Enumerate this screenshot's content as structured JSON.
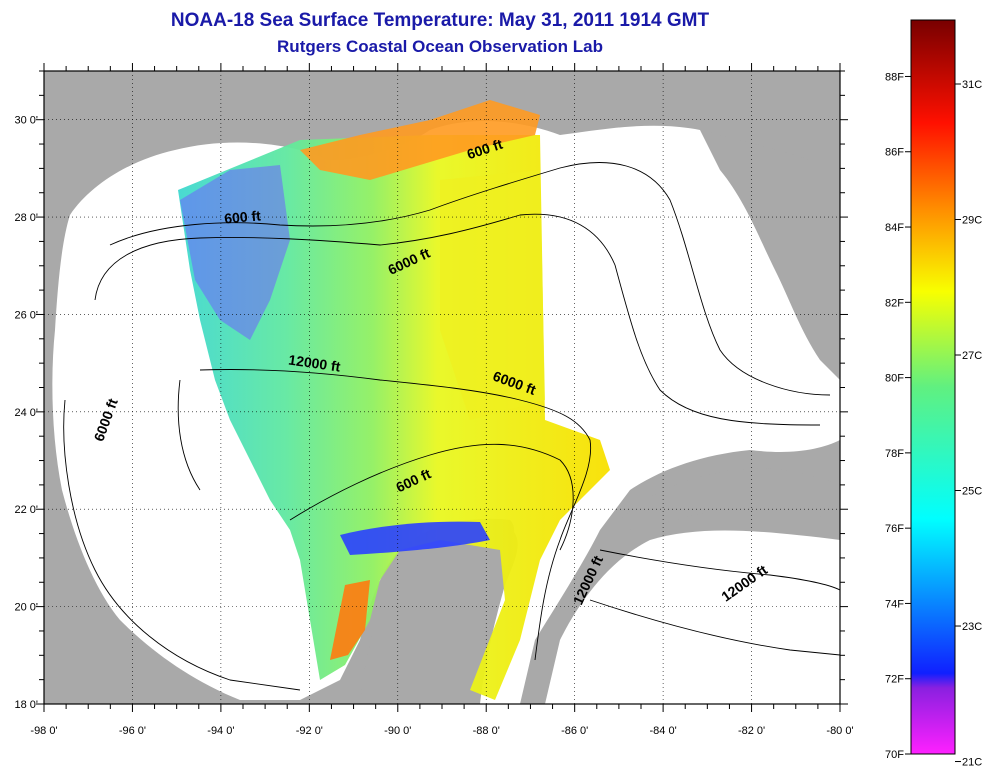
{
  "title": "NOAA-18 Sea Surface Temperature:  May 31, 2011 1914 GMT",
  "subtitle": "Rutgers Coastal Ocean Observation Lab",
  "axes": {
    "lon_range": [
      -98,
      -80
    ],
    "lat_range": [
      18,
      31
    ],
    "lon_ticks": [
      "-98 0'",
      "-96 0'",
      "-94 0'",
      "-92 0'",
      "-90 0'",
      "-88 0'",
      "-86 0'",
      "-84 0'",
      "-82 0'",
      "-80 0'"
    ],
    "lat_ticks": [
      "18 0'",
      "20 0'",
      "22 0'",
      "24 0'",
      "26 0'",
      "28 0'",
      "30 0'"
    ],
    "grid": "dotted"
  },
  "contour_labels": [
    {
      "text": "600 ft",
      "lon": -93.5,
      "lat": 27.9
    },
    {
      "text": "600 ft",
      "lon": -88.0,
      "lat": 29.3
    },
    {
      "text": "6000 ft",
      "lon": -89.7,
      "lat": 27.0
    },
    {
      "text": "12000 ft",
      "lon": -91.9,
      "lat": 24.9
    },
    {
      "text": "6000 ft",
      "lon": -87.4,
      "lat": 24.5
    },
    {
      "text": "600 ft",
      "lon": -89.6,
      "lat": 22.5
    },
    {
      "text": "6000 ft",
      "lon": -96.5,
      "lat": 23.8
    },
    {
      "text": "12000 ft",
      "lon": -85.6,
      "lat": 20.5
    },
    {
      "text": "12000 ft",
      "lon": -82.1,
      "lat": 20.4
    }
  ],
  "colorbar": {
    "f_labels": [
      "70F",
      "72F",
      "74F",
      "76F",
      "78F",
      "80F",
      "82F",
      "84F",
      "86F",
      "88F"
    ],
    "c_labels": [
      "21C",
      "23C",
      "25C",
      "27C",
      "29C",
      "31C"
    ],
    "colors": {
      "low": "#ff20ff",
      "purple": "#8a20e0",
      "blue": "#1020ff",
      "cyan": "#00ffff",
      "green": "#60f080",
      "yellow": "#f8ff00",
      "orange": "#ff9000",
      "red": "#ff1000",
      "high": "#780000"
    }
  },
  "colors": {
    "land": "#a9a9a9",
    "water_nodata": "#ffffff",
    "title": "#1a1aa8"
  }
}
